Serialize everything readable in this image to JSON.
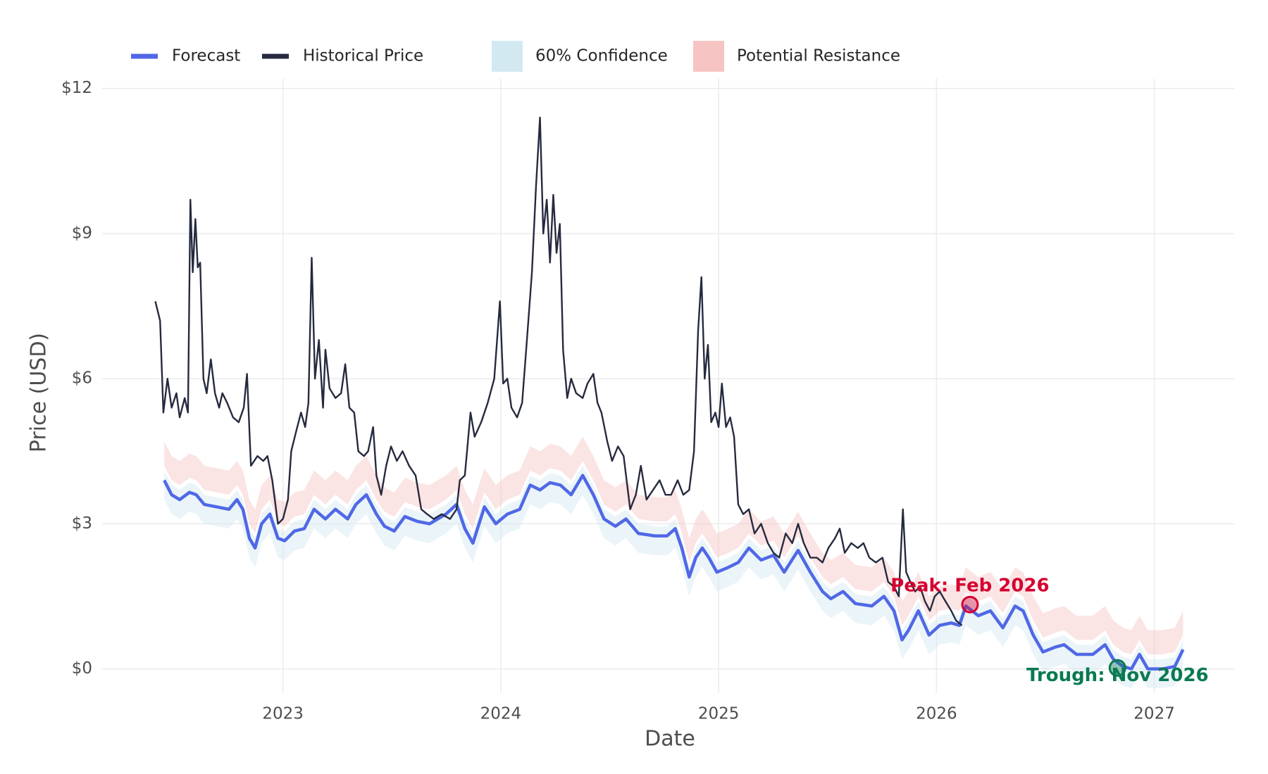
{
  "chart_data": {
    "type": "line",
    "xlabel": "Date",
    "ylabel": "Price (USD)",
    "xlim": [
      2022.17,
      2027.37
    ],
    "ylim": [
      -0.5,
      12.2
    ],
    "xticks": [
      2023,
      2024,
      2025,
      2026,
      2027
    ],
    "yticks": [
      {
        "value": 0,
        "label": "$0"
      },
      {
        "value": 3,
        "label": "$3"
      },
      {
        "value": 6,
        "label": "$6"
      },
      {
        "value": 9,
        "label": "$9"
      },
      {
        "value": 12,
        "label": "$12"
      }
    ],
    "grid": true,
    "legend": "top",
    "x": [
      2022.455,
      2022.489,
      2022.526,
      2022.571,
      2022.602,
      2022.639,
      2022.695,
      2022.752,
      2022.789,
      2022.816,
      2022.846,
      2022.872,
      2022.902,
      2022.94,
      2022.977,
      2023.008,
      2023.053,
      2023.098,
      2023.143,
      2023.195,
      2023.241,
      2023.297,
      2023.335,
      2023.383,
      2023.429,
      2023.466,
      2023.511,
      2023.56,
      2023.617,
      2023.673,
      2023.748,
      2023.797,
      2023.835,
      2023.872,
      2023.925,
      2023.977,
      2024.03,
      2024.087,
      2024.135,
      2024.18,
      2024.226,
      2024.274,
      2024.323,
      2024.376,
      2024.425,
      2024.474,
      2024.526,
      2024.575,
      2024.632,
      2024.707,
      2024.763,
      2024.801,
      2024.831,
      2024.865,
      2024.895,
      2024.925,
      2024.955,
      2024.992,
      2025.045,
      2025.09,
      2025.139,
      2025.195,
      2025.252,
      2025.301,
      2025.365,
      2025.421,
      2025.477,
      2025.515,
      2025.571,
      2025.628,
      2025.703,
      2025.759,
      2025.805,
      2025.842,
      2025.872,
      2025.917,
      2025.966,
      2026.015,
      2026.068,
      2026.105,
      2026.135,
      2026.192,
      2026.248,
      2026.305,
      2026.361,
      2026.398,
      2026.444,
      2026.489,
      2026.545,
      2026.586,
      2026.643,
      2026.718,
      2026.774,
      2026.812,
      2026.857,
      2026.895,
      2026.932,
      2026.97,
      2027.038,
      2027.094,
      2027.132
    ],
    "series": [
      {
        "name": "Forecast",
        "color": "#5068e6",
        "values": [
          3.9,
          3.6,
          3.5,
          3.65,
          3.6,
          3.4,
          3.35,
          3.3,
          3.5,
          3.3,
          2.7,
          2.5,
          3.0,
          3.2,
          2.7,
          2.65,
          2.85,
          2.9,
          3.3,
          3.1,
          3.3,
          3.1,
          3.4,
          3.6,
          3.2,
          2.95,
          2.85,
          3.15,
          3.05,
          3.0,
          3.2,
          3.4,
          2.9,
          2.6,
          3.35,
          3.0,
          3.2,
          3.3,
          3.8,
          3.7,
          3.85,
          3.8,
          3.6,
          4.0,
          3.6,
          3.1,
          2.95,
          3.1,
          2.8,
          2.75,
          2.75,
          2.9,
          2.5,
          1.9,
          2.3,
          2.5,
          2.3,
          2.0,
          2.1,
          2.2,
          2.5,
          2.25,
          2.35,
          2.0,
          2.45,
          2.0,
          1.6,
          1.45,
          1.6,
          1.35,
          1.3,
          1.5,
          1.2,
          0.6,
          0.8,
          1.2,
          0.7,
          0.9,
          0.95,
          0.9,
          1.3,
          1.1,
          1.2,
          0.85,
          1.3,
          1.2,
          0.7,
          0.35,
          0.45,
          0.5,
          0.3,
          0.3,
          0.5,
          0.2,
          0.05,
          0,
          0.3,
          0,
          0,
          0.05,
          0.4
        ]
      },
      {
        "name": "Historical Price",
        "color": "#262a3f",
        "x": [
          2022.414,
          2022.436,
          2022.451,
          2022.47,
          2022.489,
          2022.511,
          2022.526,
          2022.549,
          2022.564,
          2022.575,
          2022.586,
          2022.598,
          2022.609,
          2022.62,
          2022.635,
          2022.65,
          2022.669,
          2022.688,
          2022.707,
          2022.722,
          2022.744,
          2022.771,
          2022.797,
          2022.82,
          2022.835,
          2022.853,
          2022.883,
          2022.91,
          2022.929,
          2022.951,
          2022.977,
          2023.0,
          2023.023,
          2023.038,
          2023.06,
          2023.083,
          2023.102,
          2023.117,
          2023.132,
          2023.147,
          2023.165,
          2023.184,
          2023.195,
          2023.214,
          2023.241,
          2023.267,
          2023.286,
          2023.305,
          2023.327,
          2023.346,
          2023.372,
          2023.391,
          2023.414,
          2023.429,
          2023.451,
          2023.474,
          2023.496,
          2023.523,
          2023.549,
          2023.579,
          2023.609,
          2023.635,
          2023.662,
          2023.692,
          2023.729,
          2023.767,
          2023.797,
          2023.812,
          2023.835,
          2023.861,
          2023.88,
          2023.91,
          2023.94,
          2023.97,
          2023.996,
          2024.011,
          2024.03,
          2024.049,
          2024.075,
          2024.098,
          2024.12,
          2024.143,
          2024.162,
          2024.18,
          2024.195,
          2024.211,
          2024.226,
          2024.241,
          2024.256,
          2024.271,
          2024.286,
          2024.305,
          2024.323,
          2024.346,
          2024.376,
          2024.398,
          2024.425,
          2024.444,
          2024.462,
          2024.489,
          2024.511,
          2024.538,
          2024.564,
          2024.594,
          2024.62,
          2024.643,
          2024.669,
          2024.699,
          2024.729,
          2024.756,
          2024.782,
          2024.812,
          2024.838,
          2024.865,
          2024.887,
          2024.906,
          2024.921,
          2024.936,
          2024.951,
          2024.966,
          2024.985,
          2025.0,
          2025.015,
          2025.034,
          2025.053,
          2025.071,
          2025.09,
          2025.113,
          2025.139,
          2025.165,
          2025.195,
          2025.226,
          2025.252,
          2025.278,
          2025.308,
          2025.338,
          2025.365,
          2025.391,
          2025.421,
          2025.451,
          2025.477,
          2025.504,
          2025.534,
          2025.556,
          2025.579,
          2025.609,
          2025.639,
          2025.665,
          2025.692,
          2025.722,
          2025.752,
          2025.778,
          2025.805,
          2025.827,
          2025.846,
          2025.861,
          2025.88,
          2025.902,
          2025.925,
          2025.947,
          2025.97,
          2025.992,
          2026.015,
          2026.041,
          2026.068,
          2026.09,
          2026.117
        ],
        "values": [
          7.6,
          7.2,
          5.3,
          6.0,
          5.4,
          5.7,
          5.2,
          5.6,
          5.3,
          9.7,
          8.2,
          9.3,
          8.3,
          8.4,
          6.0,
          5.7,
          6.4,
          5.7,
          5.4,
          5.7,
          5.5,
          5.2,
          5.1,
          5.4,
          6.1,
          4.2,
          4.4,
          4.3,
          4.4,
          3.9,
          3.0,
          3.1,
          3.5,
          4.5,
          4.9,
          5.3,
          5.0,
          5.5,
          8.5,
          6.0,
          6.8,
          5.4,
          6.6,
          5.8,
          5.6,
          5.7,
          6.3,
          5.4,
          5.3,
          4.5,
          4.4,
          4.5,
          5.0,
          4.0,
          3.6,
          4.2,
          4.6,
          4.3,
          4.5,
          4.2,
          4.0,
          3.3,
          3.2,
          3.1,
          3.2,
          3.1,
          3.3,
          3.9,
          4.0,
          5.3,
          4.8,
          5.1,
          5.5,
          6.0,
          7.6,
          5.9,
          6.0,
          5.4,
          5.2,
          5.5,
          6.8,
          8.2,
          10.0,
          11.4,
          9.0,
          9.7,
          8.4,
          9.8,
          8.6,
          9.2,
          6.6,
          5.6,
          6.0,
          5.7,
          5.6,
          5.9,
          6.1,
          5.5,
          5.3,
          4.7,
          4.3,
          4.6,
          4.4,
          3.3,
          3.6,
          4.2,
          3.5,
          3.7,
          3.9,
          3.6,
          3.6,
          3.9,
          3.6,
          3.7,
          4.5,
          7.0,
          8.1,
          6.0,
          6.7,
          5.1,
          5.3,
          5.0,
          5.9,
          5.0,
          5.2,
          4.8,
          3.4,
          3.2,
          3.3,
          2.8,
          3.0,
          2.6,
          2.4,
          2.3,
          2.8,
          2.6,
          3.0,
          2.6,
          2.3,
          2.3,
          2.2,
          2.5,
          2.7,
          2.9,
          2.4,
          2.6,
          2.5,
          2.6,
          2.3,
          2.2,
          2.3,
          1.8,
          1.7,
          1.5,
          3.3,
          2.0,
          1.8,
          1.6,
          1.7,
          1.4,
          1.2,
          1.5,
          1.6,
          1.4,
          1.2,
          1.0,
          0.9
        ]
      },
      {
        "name": "60% Confidence",
        "color": "#d3e9f2",
        "upper": [
          4.1,
          3.8,
          3.7,
          3.85,
          3.8,
          3.6,
          3.55,
          3.5,
          3.7,
          3.5,
          2.9,
          2.7,
          3.2,
          3.4,
          2.9,
          2.85,
          3.05,
          3.1,
          3.5,
          3.3,
          3.5,
          3.3,
          3.6,
          3.8,
          3.4,
          3.15,
          3.05,
          3.35,
          3.25,
          3.2,
          3.4,
          3.6,
          3.1,
          2.8,
          3.55,
          3.2,
          3.4,
          3.5,
          4.0,
          3.9,
          4.05,
          4.0,
          3.8,
          4.2,
          3.8,
          3.3,
          3.15,
          3.3,
          3.0,
          2.95,
          2.95,
          3.1,
          2.7,
          2.1,
          2.5,
          2.7,
          2.5,
          2.2,
          2.3,
          2.4,
          2.7,
          2.45,
          2.55,
          2.2,
          2.65,
          2.2,
          1.8,
          1.65,
          1.8,
          1.55,
          1.5,
          1.7,
          1.4,
          0.8,
          1.0,
          1.4,
          0.9,
          1.1,
          1.15,
          1.1,
          1.5,
          1.3,
          1.4,
          1.05,
          1.5,
          1.4,
          0.9,
          0.55,
          0.65,
          0.7,
          0.5,
          0.5,
          0.7,
          0.4,
          0.25,
          0.2,
          0.5,
          0.2,
          0.2,
          0.25,
          0.6
        ],
        "lower": [
          3.5,
          3.2,
          3.1,
          3.25,
          3.2,
          3.0,
          2.95,
          2.9,
          3.1,
          2.9,
          2.3,
          2.1,
          2.6,
          2.8,
          2.3,
          2.25,
          2.45,
          2.5,
          2.9,
          2.7,
          2.9,
          2.7,
          3.0,
          3.2,
          2.8,
          2.55,
          2.45,
          2.75,
          2.65,
          2.6,
          2.8,
          3.0,
          2.5,
          2.2,
          2.95,
          2.6,
          2.8,
          2.9,
          3.4,
          3.3,
          3.45,
          3.4,
          3.2,
          3.6,
          3.2,
          2.7,
          2.55,
          2.7,
          2.4,
          2.35,
          2.35,
          2.5,
          2.1,
          1.5,
          1.9,
          2.1,
          1.9,
          1.6,
          1.7,
          1.8,
          2.1,
          1.85,
          1.95,
          1.6,
          2.05,
          1.6,
          1.2,
          1.05,
          1.2,
          0.95,
          0.9,
          1.1,
          0.8,
          0.2,
          0.4,
          0.8,
          0.3,
          0.5,
          0.55,
          0.5,
          0.9,
          0.7,
          0.8,
          0.45,
          0.9,
          0.8,
          0.3,
          -0.05,
          0.05,
          0.1,
          -0.1,
          -0.1,
          0.1,
          -0.2,
          -0.35,
          -0.4,
          -0.1,
          -0.4,
          -0.4,
          -0.35,
          0.0
        ]
      },
      {
        "name": "Potential Resistance",
        "color": "#f7c4c4",
        "upper": [
          4.7,
          4.4,
          4.3,
          4.45,
          4.4,
          4.2,
          4.15,
          4.1,
          4.3,
          4.1,
          3.5,
          3.3,
          3.8,
          4.0,
          3.5,
          3.45,
          3.65,
          3.7,
          4.1,
          3.9,
          4.1,
          3.9,
          4.2,
          4.4,
          4.0,
          3.75,
          3.65,
          3.95,
          3.85,
          3.8,
          4.0,
          4.2,
          3.7,
          3.4,
          4.15,
          3.8,
          4.0,
          4.1,
          4.6,
          4.5,
          4.65,
          4.6,
          4.4,
          4.8,
          4.4,
          3.9,
          3.75,
          3.9,
          3.6,
          3.55,
          3.55,
          3.7,
          3.3,
          2.7,
          3.1,
          3.3,
          3.1,
          2.8,
          2.9,
          3.0,
          3.3,
          3.05,
          3.15,
          2.8,
          3.25,
          2.8,
          2.4,
          2.25,
          2.4,
          2.15,
          2.1,
          2.3,
          2.0,
          1.4,
          1.6,
          2.0,
          1.5,
          1.7,
          1.75,
          1.7,
          2.1,
          1.9,
          2.0,
          1.65,
          2.1,
          2.0,
          1.5,
          1.15,
          1.25,
          1.3,
          1.1,
          1.1,
          1.3,
          1.0,
          0.85,
          0.8,
          1.1,
          0.8,
          0.8,
          0.85,
          1.2
        ],
        "lower": [
          4.2,
          3.9,
          3.8,
          3.95,
          3.9,
          3.7,
          3.65,
          3.6,
          3.8,
          3.6,
          3.0,
          2.8,
          3.3,
          3.5,
          3.0,
          2.95,
          3.15,
          3.2,
          3.6,
          3.4,
          3.6,
          3.4,
          3.7,
          3.9,
          3.5,
          3.25,
          3.15,
          3.45,
          3.35,
          3.3,
          3.5,
          3.7,
          3.2,
          2.9,
          3.65,
          3.3,
          3.5,
          3.6,
          4.1,
          4.0,
          4.15,
          4.1,
          3.9,
          4.3,
          3.9,
          3.4,
          3.25,
          3.4,
          3.1,
          3.05,
          3.05,
          3.2,
          2.8,
          2.2,
          2.6,
          2.8,
          2.6,
          2.3,
          2.4,
          2.5,
          2.8,
          2.55,
          2.65,
          2.3,
          2.75,
          2.3,
          1.9,
          1.75,
          1.9,
          1.65,
          1.6,
          1.8,
          1.5,
          0.9,
          1.1,
          1.5,
          1.0,
          1.2,
          1.25,
          1.2,
          1.6,
          1.4,
          1.5,
          1.15,
          1.6,
          1.5,
          1.0,
          0.65,
          0.75,
          0.8,
          0.6,
          0.6,
          0.8,
          0.5,
          0.35,
          0.3,
          0.6,
          0.3,
          0.3,
          0.35,
          0.7
        ]
      }
    ],
    "annotations": [
      {
        "text": "Peak: Feb 2026",
        "x": 2026.154,
        "y": 1.33,
        "color": "#d6002f"
      },
      {
        "text": "Trough: Nov 2026",
        "x": 2026.831,
        "y": 0.02,
        "color": "#0a7a50"
      }
    ]
  }
}
